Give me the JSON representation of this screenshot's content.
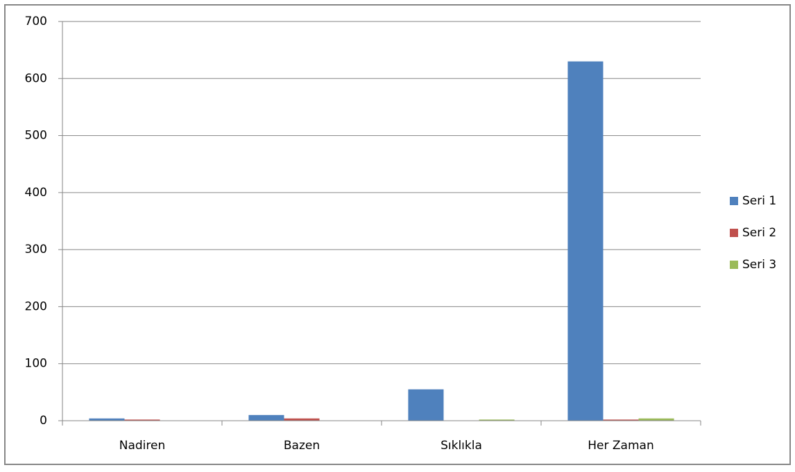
{
  "chart_data": {
    "type": "bar",
    "categories": [
      "Nadiren",
      "Bazen",
      "Sıklıkla",
      "Her Zaman"
    ],
    "series": [
      {
        "name": "Seri 1",
        "color": "#4f81bd",
        "values": [
          4,
          10,
          55,
          630
        ]
      },
      {
        "name": "Seri 2",
        "color": "#c0504d",
        "values": [
          2,
          4,
          0,
          2
        ]
      },
      {
        "name": "Seri 3",
        "color": "#9bbb59",
        "values": [
          0,
          0,
          2,
          4
        ]
      }
    ],
    "ylim": [
      0,
      700
    ],
    "yticks": [
      0,
      100,
      200,
      300,
      400,
      500,
      600,
      700
    ],
    "grid": true,
    "legend": "right"
  }
}
